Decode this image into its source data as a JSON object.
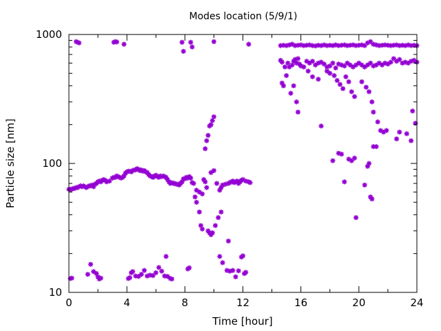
{
  "chart_data": {
    "type": "scatter",
    "title": "Modes location (5/9/1)",
    "xlabel": "Time [hour]",
    "ylabel": "Particle size [nm]",
    "xlim": [
      0,
      24
    ],
    "ylim": [
      10,
      1000
    ],
    "yscale": "log",
    "xticks": [
      0,
      4,
      8,
      12,
      16,
      20,
      24
    ],
    "yticks": [
      10,
      100,
      1000
    ],
    "marker": "star",
    "color": "#9400d3",
    "grid": false,
    "legend": "none",
    "points": [
      [
        0.0,
        63
      ],
      [
        0.1,
        63
      ],
      [
        0.2,
        63
      ],
      [
        0.3,
        64
      ],
      [
        0.4,
        64
      ],
      [
        0.5,
        65
      ],
      [
        0.6,
        65
      ],
      [
        0.7,
        66
      ],
      [
        0.8,
        67
      ],
      [
        0.9,
        66
      ],
      [
        1.0,
        67
      ],
      [
        1.1,
        66
      ],
      [
        1.2,
        65
      ],
      [
        1.3,
        66
      ],
      [
        1.4,
        67
      ],
      [
        1.5,
        67
      ],
      [
        1.6,
        68
      ],
      [
        1.7,
        66
      ],
      [
        1.8,
        69
      ],
      [
        1.9,
        70
      ],
      [
        2.0,
        72
      ],
      [
        2.1,
        73
      ],
      [
        2.2,
        72
      ],
      [
        2.3,
        74
      ],
      [
        2.4,
        75
      ],
      [
        2.5,
        74
      ],
      [
        2.6,
        72
      ],
      [
        2.8,
        73
      ],
      [
        3.0,
        77
      ],
      [
        3.1,
        78
      ],
      [
        3.2,
        78
      ],
      [
        3.3,
        80
      ],
      [
        3.4,
        79
      ],
      [
        3.5,
        78
      ],
      [
        3.6,
        77
      ],
      [
        3.7,
        78
      ],
      [
        3.8,
        80
      ],
      [
        3.9,
        84
      ],
      [
        4.0,
        86
      ],
      [
        4.1,
        87
      ],
      [
        4.2,
        87
      ],
      [
        4.3,
        86
      ],
      [
        4.4,
        88
      ],
      [
        4.5,
        89
      ],
      [
        4.6,
        89
      ],
      [
        4.7,
        91
      ],
      [
        4.8,
        90
      ],
      [
        4.9,
        88
      ],
      [
        5.0,
        89
      ],
      [
        5.1,
        87
      ],
      [
        5.2,
        88
      ],
      [
        5.3,
        86
      ],
      [
        5.4,
        85
      ],
      [
        5.5,
        82
      ],
      [
        5.6,
        80
      ],
      [
        5.7,
        79
      ],
      [
        5.8,
        78
      ],
      [
        5.9,
        80
      ],
      [
        6.0,
        81
      ],
      [
        6.1,
        79
      ],
      [
        6.2,
        78
      ],
      [
        6.3,
        80
      ],
      [
        6.4,
        79
      ],
      [
        6.5,
        80
      ],
      [
        6.6,
        79
      ],
      [
        6.7,
        78
      ],
      [
        6.8,
        75
      ],
      [
        6.9,
        72
      ],
      [
        7.0,
        70
      ],
      [
        7.1,
        71
      ],
      [
        7.2,
        70
      ],
      [
        7.3,
        70
      ],
      [
        7.4,
        69
      ],
      [
        7.5,
        69
      ],
      [
        7.6,
        68
      ],
      [
        7.7,
        70
      ],
      [
        7.8,
        72
      ],
      [
        7.9,
        76
      ],
      [
        8.0,
        76
      ],
      [
        8.1,
        78
      ],
      [
        8.2,
        77
      ],
      [
        8.3,
        79
      ],
      [
        8.4,
        77
      ],
      [
        8.5,
        71
      ],
      [
        8.6,
        70
      ],
      [
        8.8,
        62
      ],
      [
        9.0,
        60
      ],
      [
        9.2,
        58
      ],
      [
        9.3,
        75
      ],
      [
        9.4,
        72
      ],
      [
        9.5,
        65
      ],
      [
        9.8,
        85
      ],
      [
        10.0,
        88
      ],
      [
        10.2,
        70
      ],
      [
        10.4,
        62
      ],
      [
        10.5,
        65
      ],
      [
        10.6,
        68
      ],
      [
        10.8,
        69
      ],
      [
        11.0,
        70
      ],
      [
        11.1,
        71
      ],
      [
        11.2,
        72
      ],
      [
        11.3,
        73
      ],
      [
        11.4,
        71
      ],
      [
        11.5,
        72
      ],
      [
        11.6,
        73
      ],
      [
        11.7,
        70
      ],
      [
        11.8,
        72
      ],
      [
        11.9,
        74
      ],
      [
        12.0,
        75
      ],
      [
        12.2,
        73
      ],
      [
        12.4,
        72
      ],
      [
        12.5,
        71
      ],
      [
        8.7,
        55
      ],
      [
        8.8,
        50
      ],
      [
        9.0,
        42
      ],
      [
        9.1,
        33
      ],
      [
        9.2,
        31
      ],
      [
        9.6,
        30
      ],
      [
        9.7,
        29
      ],
      [
        9.8,
        28
      ],
      [
        9.9,
        29
      ],
      [
        10.1,
        33
      ],
      [
        10.3,
        38
      ],
      [
        10.5,
        42
      ],
      [
        11.0,
        25
      ],
      [
        9.4,
        130
      ],
      [
        9.5,
        150
      ],
      [
        9.6,
        165
      ],
      [
        9.7,
        195
      ],
      [
        9.8,
        200
      ],
      [
        9.9,
        215
      ],
      [
        10.0,
        230
      ],
      [
        0.1,
        12.8
      ],
      [
        0.2,
        12.9
      ],
      [
        1.3,
        13.8
      ],
      [
        1.5,
        16.5
      ],
      [
        1.7,
        14.5
      ],
      [
        1.9,
        14.0
      ],
      [
        2.0,
        13.2
      ],
      [
        2.1,
        12.7
      ],
      [
        2.2,
        12.9
      ],
      [
        4.1,
        12.8
      ],
      [
        4.2,
        13.0
      ],
      [
        4.3,
        14.2
      ],
      [
        4.4,
        14.5
      ],
      [
        4.6,
        13.4
      ],
      [
        4.8,
        13.3
      ],
      [
        5.0,
        13.8
      ],
      [
        5.2,
        14.8
      ],
      [
        5.4,
        13.4
      ],
      [
        5.6,
        13.6
      ],
      [
        5.8,
        13.5
      ],
      [
        6.0,
        14.2
      ],
      [
        6.2,
        15.6
      ],
      [
        6.4,
        14.6
      ],
      [
        6.6,
        13.4
      ],
      [
        6.7,
        19
      ],
      [
        6.8,
        13.3
      ],
      [
        7.0,
        12.8
      ],
      [
        7.1,
        12.7
      ],
      [
        8.2,
        15.2
      ],
      [
        8.3,
        15.5
      ],
      [
        10.4,
        19
      ],
      [
        10.6,
        17
      ],
      [
        10.9,
        14.8
      ],
      [
        11.1,
        14.6
      ],
      [
        11.3,
        14.8
      ],
      [
        11.5,
        13.2
      ],
      [
        11.7,
        14.7
      ],
      [
        11.9,
        18.8
      ],
      [
        12.0,
        19.2
      ],
      [
        12.1,
        14.0
      ],
      [
        12.2,
        14.3
      ],
      [
        0.5,
        880
      ],
      [
        0.6,
        870
      ],
      [
        0.7,
        860
      ],
      [
        3.1,
        870
      ],
      [
        3.2,
        880
      ],
      [
        3.3,
        875
      ],
      [
        3.8,
        840
      ],
      [
        7.8,
        870
      ],
      [
        7.9,
        740
      ],
      [
        8.4,
        870
      ],
      [
        8.5,
        800
      ],
      [
        10.0,
        880
      ],
      [
        12.4,
        840
      ],
      [
        14.6,
        820
      ],
      [
        14.8,
        825
      ],
      [
        15.0,
        820
      ],
      [
        15.2,
        830
      ],
      [
        15.4,
        840
      ],
      [
        15.6,
        820
      ],
      [
        15.8,
        825
      ],
      [
        16.0,
        830
      ],
      [
        16.2,
        820
      ],
      [
        16.4,
        825
      ],
      [
        16.6,
        830
      ],
      [
        16.8,
        820
      ],
      [
        17.0,
        815
      ],
      [
        17.2,
        825
      ],
      [
        17.4,
        820
      ],
      [
        17.6,
        830
      ],
      [
        17.8,
        820
      ],
      [
        18.0,
        825
      ],
      [
        18.2,
        820
      ],
      [
        18.4,
        830
      ],
      [
        18.6,
        820
      ],
      [
        18.8,
        825
      ],
      [
        19.0,
        830
      ],
      [
        19.2,
        820
      ],
      [
        19.4,
        825
      ],
      [
        19.6,
        830
      ],
      [
        19.8,
        820
      ],
      [
        20.0,
        825
      ],
      [
        20.2,
        830
      ],
      [
        20.4,
        820
      ],
      [
        20.6,
        860
      ],
      [
        20.8,
        880
      ],
      [
        21.0,
        840
      ],
      [
        21.2,
        830
      ],
      [
        21.4,
        820
      ],
      [
        21.6,
        825
      ],
      [
        21.8,
        830
      ],
      [
        22.0,
        825
      ],
      [
        22.2,
        820
      ],
      [
        22.4,
        825
      ],
      [
        22.6,
        830
      ],
      [
        22.8,
        820
      ],
      [
        23.0,
        825
      ],
      [
        23.2,
        820
      ],
      [
        23.4,
        830
      ],
      [
        23.6,
        820
      ],
      [
        23.8,
        825
      ],
      [
        24.0,
        820
      ],
      [
        14.6,
        630
      ],
      [
        14.7,
        610
      ],
      [
        14.9,
        560
      ],
      [
        15.0,
        480
      ],
      [
        15.1,
        600
      ],
      [
        15.2,
        560
      ],
      [
        15.4,
        580
      ],
      [
        15.5,
        620
      ],
      [
        15.6,
        640
      ],
      [
        15.7,
        600
      ],
      [
        15.8,
        650
      ],
      [
        15.9,
        590
      ],
      [
        16.0,
        570
      ],
      [
        16.2,
        560
      ],
      [
        16.4,
        620
      ],
      [
        16.6,
        600
      ],
      [
        16.8,
        620
      ],
      [
        17.0,
        580
      ],
      [
        17.2,
        600
      ],
      [
        17.4,
        610
      ],
      [
        17.6,
        590
      ],
      [
        17.8,
        560
      ],
      [
        18.0,
        570
      ],
      [
        18.2,
        600
      ],
      [
        18.4,
        550
      ],
      [
        18.6,
        590
      ],
      [
        18.8,
        580
      ],
      [
        19.0,
        570
      ],
      [
        19.2,
        600
      ],
      [
        19.4,
        580
      ],
      [
        19.6,
        560
      ],
      [
        19.8,
        580
      ],
      [
        20.0,
        600
      ],
      [
        20.2,
        580
      ],
      [
        20.4,
        560
      ],
      [
        20.6,
        580
      ],
      [
        20.8,
        600
      ],
      [
        21.0,
        570
      ],
      [
        21.2,
        580
      ],
      [
        21.4,
        600
      ],
      [
        21.6,
        580
      ],
      [
        21.8,
        600
      ],
      [
        22.0,
        590
      ],
      [
        22.2,
        610
      ],
      [
        22.4,
        650
      ],
      [
        22.6,
        620
      ],
      [
        22.8,
        640
      ],
      [
        23.0,
        600
      ],
      [
        23.2,
        610
      ],
      [
        23.4,
        600
      ],
      [
        23.6,
        620
      ],
      [
        23.8,
        630
      ],
      [
        24.0,
        610
      ],
      [
        14.7,
        420
      ],
      [
        14.8,
        400
      ],
      [
        15.3,
        350
      ],
      [
        15.5,
        400
      ],
      [
        15.7,
        300
      ],
      [
        15.8,
        250
      ],
      [
        16.5,
        520
      ],
      [
        16.8,
        470
      ],
      [
        17.2,
        450
      ],
      [
        17.8,
        520
      ],
      [
        18.0,
        500
      ],
      [
        18.3,
        480
      ],
      [
        18.5,
        440
      ],
      [
        18.7,
        410
      ],
      [
        18.9,
        380
      ],
      [
        19.1,
        470
      ],
      [
        19.3,
        430
      ],
      [
        19.5,
        360
      ],
      [
        19.7,
        330
      ],
      [
        20.2,
        430
      ],
      [
        20.5,
        390
      ],
      [
        20.7,
        360
      ],
      [
        20.9,
        300
      ],
      [
        21.0,
        250
      ],
      [
        21.3,
        210
      ],
      [
        21.5,
        180
      ],
      [
        21.7,
        175
      ],
      [
        21.9,
        180
      ],
      [
        22.6,
        155
      ],
      [
        22.8,
        175
      ],
      [
        23.3,
        170
      ],
      [
        23.6,
        150
      ],
      [
        23.7,
        255
      ],
      [
        23.9,
        205
      ],
      [
        17.4,
        195
      ],
      [
        18.2,
        105
      ],
      [
        18.6,
        120
      ],
      [
        18.8,
        118
      ],
      [
        19.0,
        72
      ],
      [
        19.3,
        108
      ],
      [
        19.5,
        105
      ],
      [
        19.7,
        110
      ],
      [
        19.8,
        38
      ],
      [
        20.4,
        68
      ],
      [
        20.6,
        95
      ],
      [
        20.7,
        100
      ],
      [
        20.8,
        55
      ],
      [
        20.9,
        53
      ],
      [
        21.0,
        135
      ],
      [
        21.2,
        135
      ]
    ]
  }
}
